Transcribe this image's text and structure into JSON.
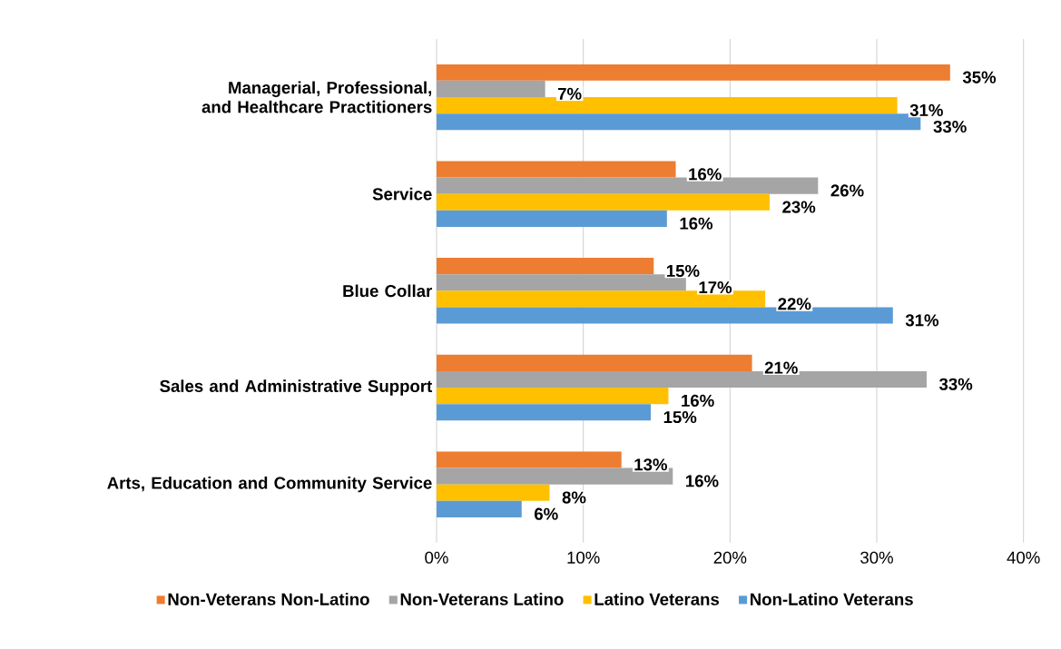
{
  "chart_data": {
    "type": "bar",
    "orientation": "horizontal",
    "categories": [
      "Managerial, Professional, and Healthcare Practitioners",
      "Service",
      "Blue Collar",
      "Sales and Administrative Support",
      "Arts, Education and Community Service"
    ],
    "series": [
      {
        "name": "Non-Veterans Non-Latino",
        "color": "#ed7d31",
        "values": [
          35.0,
          16.3,
          14.8,
          21.5,
          12.6
        ],
        "value_labels": [
          "35%",
          "16%",
          "15%",
          "21%",
          "13%"
        ]
      },
      {
        "name": "Non-Veterans Latino",
        "color": "#a5a5a5",
        "values": [
          7.4,
          26.0,
          17.0,
          33.4,
          16.1
        ],
        "value_labels": [
          "7%",
          "26%",
          "17%",
          "33%",
          "16%"
        ]
      },
      {
        "name": "Latino Veterans",
        "color": "#ffc000",
        "values": [
          31.4,
          22.7,
          22.4,
          15.8,
          7.7
        ],
        "value_labels": [
          "31%",
          "23%",
          "22%",
          "16%",
          "8%"
        ]
      },
      {
        "name": "Non-Latino Veterans",
        "color": "#5b9bd5",
        "values": [
          33.0,
          15.7,
          31.1,
          14.6,
          5.8
        ],
        "value_labels": [
          "33%",
          "16%",
          "31%",
          "15%",
          "6%"
        ]
      }
    ],
    "xlim": [
      0,
      40
    ],
    "xticks": [
      {
        "value": 0,
        "label": "0%"
      },
      {
        "value": 10,
        "label": "10%"
      },
      {
        "value": 20,
        "label": "20%"
      },
      {
        "value": 30,
        "label": "30%"
      },
      {
        "value": 40,
        "label": "40%"
      }
    ],
    "grid": "x",
    "legend": "bottom"
  }
}
